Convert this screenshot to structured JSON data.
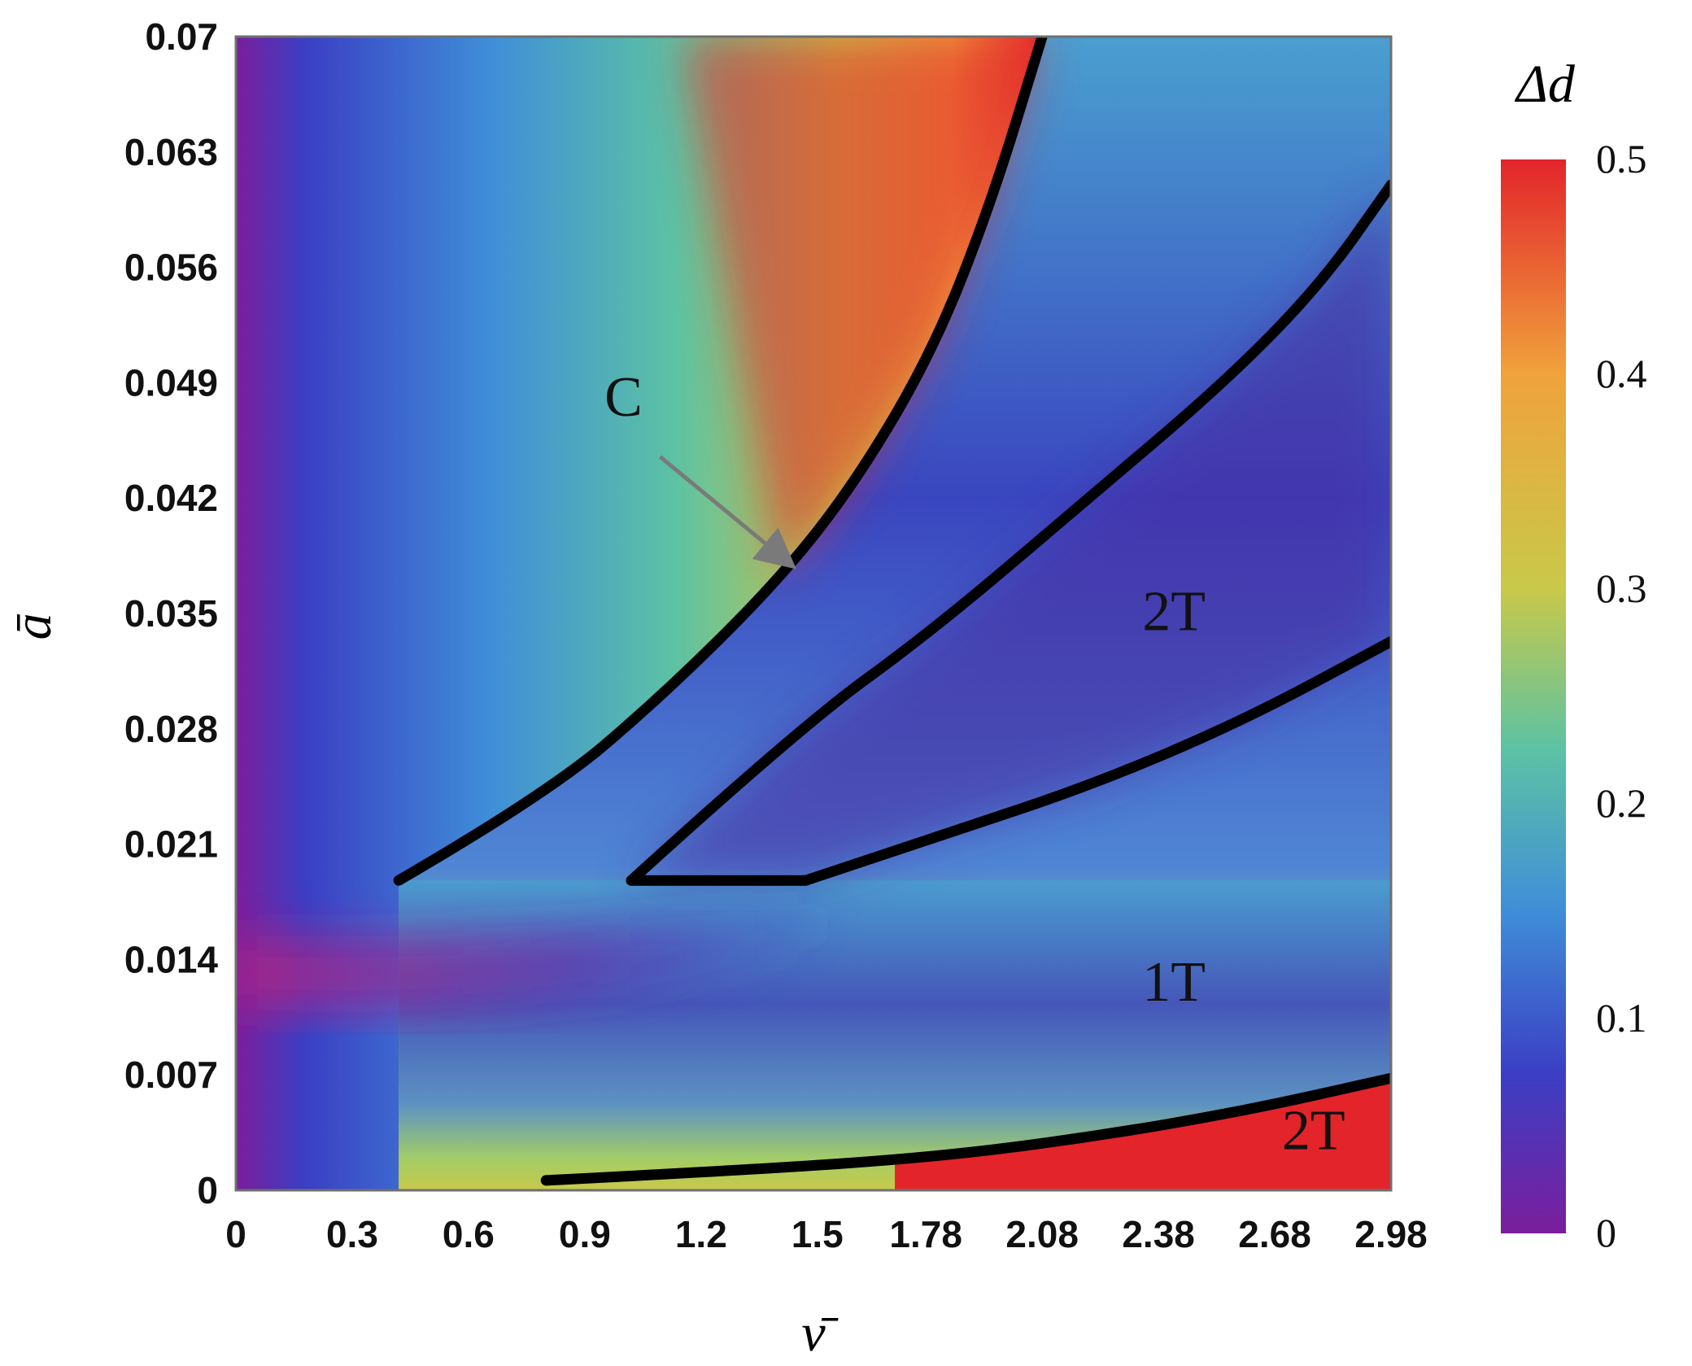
{
  "chart_data": {
    "type": "heatmap",
    "title": "",
    "xlabel": "ν̄",
    "ylabel": "ā",
    "x_ticks": [
      "0",
      "0.3",
      "0.6",
      "0.9",
      "1.2",
      "1.5",
      "1.78",
      "2.08",
      "2.38",
      "2.68",
      "2.98"
    ],
    "y_ticks": [
      "0",
      "0.007",
      "0.014",
      "0.021",
      "0.028",
      "0.035",
      "0.042",
      "0.049",
      "0.056",
      "0.063",
      "0.07"
    ],
    "xlim": [
      0,
      2.98
    ],
    "ylim": [
      0,
      0.07
    ],
    "colorbar": {
      "label": "Δd",
      "range": [
        0,
        0.5
      ],
      "ticks": [
        "0",
        "0.1",
        "0.2",
        "0.3",
        "0.4",
        "0.5"
      ],
      "colors": [
        "#7a1e9c",
        "#3b3fc4",
        "#3f8ed8",
        "#5cc2a4",
        "#c8c94a",
        "#f0a23c",
        "#e3242b"
      ]
    },
    "regions": [
      {
        "label": "C",
        "x": 1.0,
        "y": 0.047
      },
      {
        "label": "2T",
        "x": 2.42,
        "y": 0.034
      },
      {
        "label": "1T",
        "x": 2.42,
        "y": 0.0115
      },
      {
        "label": "2T",
        "x": 2.78,
        "y": 0.0025
      }
    ],
    "annotation": {
      "text": "C",
      "from": [
        1.0,
        0.045
      ],
      "to": [
        1.43,
        0.038
      ]
    },
    "boundaries": [
      {
        "name": "boundary-C",
        "x": [
          0.42,
          0.8,
          1.1,
          1.4,
          1.6,
          1.8,
          1.95,
          2.08
        ],
        "y": [
          0.0188,
          0.024,
          0.03,
          0.037,
          0.043,
          0.051,
          0.06,
          0.07
        ]
      },
      {
        "name": "boundary-upper-2T",
        "x": [
          1.02,
          1.45,
          1.8,
          2.2,
          2.55,
          2.8,
          2.98
        ],
        "y": [
          0.0188,
          0.028,
          0.034,
          0.042,
          0.049,
          0.055,
          0.061
        ]
      },
      {
        "name": "boundary-wedge-bottom",
        "x": [
          1.02,
          1.47
        ],
        "y": [
          0.0188,
          0.0188
        ]
      },
      {
        "name": "boundary-lower-2T",
        "x": [
          1.47,
          1.8,
          2.2,
          2.6,
          2.98
        ],
        "y": [
          0.0188,
          0.0214,
          0.0245,
          0.0285,
          0.0333
        ]
      },
      {
        "name": "boundary-bottom-2T",
        "x": [
          0.8,
          1.3,
          1.8,
          2.2,
          2.6,
          2.98
        ],
        "y": [
          0.0006,
          0.0012,
          0.002,
          0.0032,
          0.0048,
          0.0068
        ]
      }
    ]
  }
}
